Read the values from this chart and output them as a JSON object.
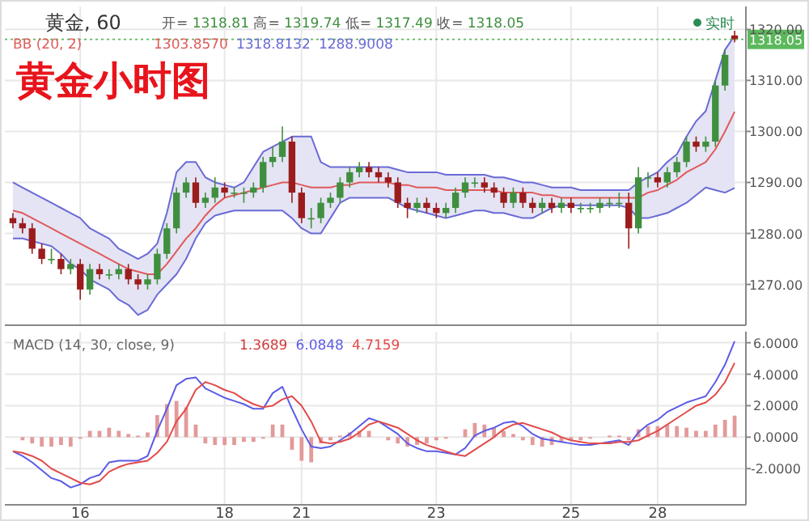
{
  "chart_data": [
    {
      "type": "candlestick",
      "title": "黄金小时图",
      "annotations": [
        "黄金, 60",
        "开= 1318.81 高= 1319.74 低= 1317.49 收= 1318.05",
        "1303.8570",
        "1318.8132",
        "1288.9008",
        "实时"
      ],
      "categories": [
        null,
        null,
        null,
        null,
        null,
        null,
        null,
        "16",
        null,
        null,
        null,
        null,
        null,
        null,
        null,
        null,
        null,
        null,
        null,
        null,
        null,
        null,
        "18",
        null,
        null,
        null,
        null,
        null,
        null,
        null,
        "21",
        null,
        null,
        null,
        null,
        null,
        null,
        null,
        null,
        null,
        null,
        null,
        null,
        null,
        "23",
        null,
        null,
        null,
        null,
        null,
        null,
        null,
        null,
        null,
        null,
        null,
        null,
        null,
        "25",
        null,
        null,
        null,
        null,
        null,
        null,
        null,
        null,
        "28",
        null,
        null,
        null,
        null,
        null,
        null,
        null,
        null
      ],
      "ohlc": [
        [
          1283,
          1284,
          1281,
          1282
        ],
        [
          1282,
          1283,
          1280,
          1281
        ],
        [
          1281,
          1282,
          1276,
          1277
        ],
        [
          1277,
          1278,
          1274,
          1275
        ],
        [
          1275,
          1277,
          1274,
          1275
        ],
        [
          1275,
          1276,
          1272,
          1273
        ],
        [
          1273,
          1275,
          1272,
          1274
        ],
        [
          1274,
          1275,
          1267,
          1269
        ],
        [
          1269,
          1274,
          1268,
          1273
        ],
        [
          1273,
          1274,
          1271,
          1272
        ],
        [
          1272,
          1273,
          1271,
          1272
        ],
        [
          1272,
          1274,
          1271,
          1273
        ],
        [
          1273,
          1274,
          1270,
          1271
        ],
        [
          1271,
          1272,
          1269,
          1270
        ],
        [
          1270,
          1272,
          1269,
          1271
        ],
        [
          1271,
          1277,
          1270,
          1276
        ],
        [
          1276,
          1282,
          1275,
          1281
        ],
        [
          1281,
          1289,
          1280,
          1288
        ],
        [
          1288,
          1291,
          1287,
          1290
        ],
        [
          1290,
          1291,
          1285,
          1286
        ],
        [
          1286,
          1288,
          1285,
          1287
        ],
        [
          1287,
          1291,
          1286,
          1289
        ],
        [
          1289,
          1290,
          1287,
          1288
        ],
        [
          1288,
          1289,
          1287,
          1288
        ],
        [
          1288,
          1289,
          1286,
          1288
        ],
        [
          1288,
          1290,
          1287,
          1289
        ],
        [
          1289,
          1295,
          1288,
          1294
        ],
        [
          1294,
          1297,
          1293,
          1295
        ],
        [
          1295,
          1301,
          1294,
          1298
        ],
        [
          1298,
          1299,
          1286,
          1288
        ],
        [
          1288,
          1289,
          1282,
          1283
        ],
        [
          1283,
          1285,
          1281,
          1283
        ],
        [
          1283,
          1287,
          1282,
          1286
        ],
        [
          1286,
          1288,
          1285,
          1287
        ],
        [
          1287,
          1291,
          1286,
          1290
        ],
        [
          1290,
          1293,
          1289,
          1292
        ],
        [
          1292,
          1294,
          1291,
          1293
        ],
        [
          1293,
          1294,
          1291,
          1292
        ],
        [
          1292,
          1293,
          1290,
          1291
        ],
        [
          1291,
          1292,
          1289,
          1290
        ],
        [
          1290,
          1291,
          1285,
          1286
        ],
        [
          1286,
          1287,
          1283,
          1285
        ],
        [
          1285,
          1287,
          1284,
          1286
        ],
        [
          1286,
          1287,
          1284,
          1285
        ],
        [
          1285,
          1286,
          1283,
          1284
        ],
        [
          1284,
          1286,
          1283,
          1285
        ],
        [
          1285,
          1289,
          1284,
          1288
        ],
        [
          1288,
          1291,
          1287,
          1290
        ],
        [
          1290,
          1291,
          1289,
          1290
        ],
        [
          1290,
          1291,
          1288,
          1289
        ],
        [
          1289,
          1290,
          1287,
          1288
        ],
        [
          1288,
          1289,
          1285,
          1286
        ],
        [
          1286,
          1289,
          1285,
          1288
        ],
        [
          1288,
          1289,
          1285,
          1286
        ],
        [
          1286,
          1287,
          1284,
          1285
        ],
        [
          1285,
          1287,
          1284,
          1286
        ],
        [
          1286,
          1287,
          1284,
          1285
        ],
        [
          1285,
          1287,
          1284,
          1286
        ],
        [
          1286,
          1287,
          1284,
          1285
        ],
        [
          1285,
          1286,
          1284,
          1285
        ],
        [
          1285,
          1286,
          1284,
          1285
        ],
        [
          1285,
          1287,
          1284,
          1286
        ],
        [
          1286,
          1287,
          1285,
          1286
        ],
        [
          1286,
          1288,
          1285,
          1286
        ],
        [
          1286,
          1288,
          1277,
          1281
        ],
        [
          1281,
          1293,
          1280,
          1291
        ],
        [
          1291,
          1292,
          1289,
          1291
        ],
        [
          1291,
          1292,
          1289,
          1290
        ],
        [
          1290,
          1293,
          1289,
          1292
        ],
        [
          1292,
          1295,
          1291,
          1294
        ],
        [
          1294,
          1299,
          1293,
          1298
        ],
        [
          1298,
          1299,
          1296,
          1297
        ],
        [
          1297,
          1299,
          1296,
          1298
        ],
        [
          1298,
          1310,
          1297,
          1309
        ],
        [
          1309,
          1316,
          1308,
          1315
        ],
        [
          1318.81,
          1319.74,
          1317.49,
          1318.05
        ]
      ],
      "series": [
        {
          "name": "BB (20, 2)",
          "type": "line",
          "color": "#e05a5a",
          "values": [
            1284.5,
            1284,
            1283,
            1282,
            1281,
            1280,
            1279,
            1278,
            1277,
            1276,
            1275,
            1274,
            1273,
            1272.5,
            1272,
            1272,
            1274,
            1276.5,
            1279,
            1281,
            1283.5,
            1285.5,
            1287,
            1287.5,
            1288,
            1288.5,
            1289,
            1289.5,
            1290,
            1290,
            1289.5,
            1289,
            1289,
            1289,
            1289.5,
            1289.5,
            1290,
            1290,
            1290,
            1290,
            1289.5,
            1289.5,
            1289,
            1289,
            1289,
            1288.5,
            1288.5,
            1288.5,
            1288.5,
            1288.5,
            1288.5,
            1288,
            1288,
            1288,
            1288,
            1287.5,
            1287.5,
            1287,
            1287,
            1287,
            1287,
            1287,
            1287,
            1287,
            1287,
            1287,
            1288,
            1288.5,
            1289.5,
            1290.5,
            1292,
            1293,
            1294,
            1296.5,
            1300,
            1303.857
          ],
          "upper": [
            1290,
            1289,
            1288,
            1287,
            1286,
            1285,
            1284,
            1283,
            1281,
            1280,
            1279,
            1277,
            1276,
            1275,
            1276,
            1278,
            1284,
            1292,
            1294,
            1294,
            1291,
            1290,
            1289.5,
            1289,
            1290,
            1293,
            1296,
            1297,
            1298,
            1299,
            1299,
            1299,
            1294,
            1293,
            1293,
            1293,
            1293,
            1293,
            1293,
            1293,
            1292.5,
            1292,
            1292,
            1292,
            1292,
            1291.5,
            1291.5,
            1291.5,
            1291.5,
            1291.5,
            1291,
            1291,
            1290.5,
            1290,
            1290,
            1289.5,
            1289,
            1289,
            1289,
            1288.5,
            1288.5,
            1288.5,
            1288.5,
            1288.5,
            1288.5,
            1290,
            1291,
            1292,
            1294,
            1295.5,
            1299,
            1302,
            1304,
            1310,
            1316,
            1318.8132
          ],
          "lower": [
            1279,
            1279,
            1278.5,
            1278,
            1277.5,
            1276,
            1274,
            1273,
            1271,
            1270,
            1269,
            1267,
            1266,
            1264,
            1265,
            1268,
            1270,
            1272,
            1275,
            1279,
            1282,
            1283.5,
            1284,
            1284.5,
            1284.5,
            1284.5,
            1284.5,
            1284.5,
            1284.5,
            1283,
            1281,
            1280,
            1280,
            1283,
            1286,
            1287,
            1287,
            1287,
            1287,
            1287,
            1286,
            1285,
            1284.5,
            1284,
            1283.5,
            1283,
            1283.5,
            1284,
            1284.5,
            1284.5,
            1284,
            1284,
            1283.5,
            1283,
            1283,
            1284,
            1285,
            1285.5,
            1285.5,
            1285.5,
            1285.5,
            1285.5,
            1285.5,
            1285.5,
            1285,
            1283,
            1283,
            1283.5,
            1284,
            1285,
            1286,
            1287.5,
            1289,
            1288.5,
            1288,
            1288.9008
          ]
        },
        {
          "type": "line",
          "color": "#6a6ad6",
          "values": [
            1290,
            1289,
            1288,
            1287,
            1286,
            1285,
            1284,
            1283,
            1281,
            1280,
            1279,
            1277,
            1276,
            1275,
            1276,
            1278,
            1284,
            1292,
            1294,
            1294,
            1291,
            1290,
            1289.5,
            1289,
            1290,
            1293,
            1296,
            1297,
            1298,
            1299,
            1299,
            1299,
            1294,
            1293,
            1293,
            1293,
            1293,
            1293,
            1293,
            1293,
            1292.5,
            1292,
            1292,
            1292,
            1292,
            1291.5,
            1291.5,
            1291.5,
            1291.5,
            1291.5,
            1291,
            1291,
            1290.5,
            1290,
            1290,
            1289.5,
            1289,
            1289,
            1289,
            1288.5,
            1288.5,
            1288.5,
            1288.5,
            1288.5,
            1288.5,
            1290,
            1291,
            1292,
            1294,
            1295.5,
            1299,
            1302,
            1304,
            1310,
            1316,
            1318.8132
          ]
        },
        {
          "type": "line",
          "color": "#6a6ad6",
          "values": [
            1279,
            1279,
            1278.5,
            1278,
            1277.5,
            1276,
            1274,
            1273,
            1271,
            1270,
            1269,
            1267,
            1266,
            1264,
            1265,
            1268,
            1270,
            1272,
            1275,
            1279,
            1282,
            1283.5,
            1284,
            1284.5,
            1284.5,
            1284.5,
            1284.5,
            1284.5,
            1284.5,
            1283,
            1281,
            1280,
            1280,
            1283,
            1286,
            1287,
            1287,
            1287,
            1287,
            1287,
            1286,
            1285,
            1284.5,
            1284,
            1283.5,
            1283,
            1283.5,
            1284,
            1284.5,
            1284.5,
            1284,
            1284,
            1283.5,
            1283,
            1283,
            1284,
            1285,
            1285.5,
            1285.5,
            1285.5,
            1285.5,
            1285.5,
            1285.5,
            1285.5,
            1285,
            1283,
            1283,
            1283.5,
            1284,
            1285,
            1286,
            1287.5,
            1289,
            1288.5,
            1288,
            1288.9008
          ]
        }
      ],
      "ylim": [
        1262,
        1324.5
      ],
      "yticks": [
        {
          "value": 1270,
          "label": "1270.00"
        },
        {
          "value": 1280,
          "label": "1280.00"
        },
        {
          "value": 1290,
          "label": "1290.00"
        },
        {
          "value": 1300,
          "label": "1300.00"
        },
        {
          "value": 1310,
          "label": "1310.00"
        },
        {
          "value": 1320,
          "label": "1320.00"
        }
      ],
      "ref_lines": [
        {
          "axis": "y",
          "value": 1318.05,
          "label": "1318.05",
          "color": "#5cb85c",
          "line_style": "dotted"
        }
      ],
      "grid": true,
      "tick_labels": "y"
    },
    {
      "type": "line",
      "title": "MACD (14, 30, close, 9)",
      "annotations": [
        "1.3689",
        "6.0848",
        "4.7159"
      ],
      "categories": [
        null,
        null,
        null,
        null,
        null,
        null,
        null,
        "16",
        null,
        null,
        null,
        null,
        null,
        null,
        null,
        null,
        null,
        null,
        null,
        null,
        null,
        null,
        "18",
        null,
        null,
        null,
        null,
        null,
        null,
        null,
        "21",
        null,
        null,
        null,
        null,
        null,
        null,
        null,
        null,
        null,
        null,
        null,
        null,
        null,
        "23",
        null,
        null,
        null,
        null,
        null,
        null,
        null,
        null,
        null,
        null,
        null,
        null,
        null,
        "25",
        null,
        null,
        null,
        null,
        null,
        null,
        null,
        null,
        "28",
        null,
        null,
        null,
        null,
        null,
        null,
        null,
        null
      ],
      "series": [
        {
          "type": "bar",
          "color": "#e39a9a",
          "values": [
            0,
            -0.2,
            -0.4,
            -0.6,
            -0.6,
            -0.5,
            -0.6,
            -0.1,
            0.4,
            0.4,
            0.6,
            0.4,
            0.2,
            0.1,
            0.3,
            1.4,
            2.1,
            2.3,
            1.9,
            0.8,
            -0.4,
            -0.5,
            -0.5,
            -0.5,
            -0.3,
            -0.3,
            -0.1,
            0.8,
            0.8,
            -0.8,
            -1.5,
            -1.6,
            -0.4,
            -0.2,
            0.1,
            0.3,
            0.4,
            0.4,
            0,
            -0.2,
            -0.4,
            -0.6,
            -0.5,
            -0.4,
            -0.2,
            -0.1,
            0,
            0.5,
            0.9,
            0.8,
            0.6,
            0.4,
            0.2,
            -0.2,
            -0.5,
            -0.6,
            -0.5,
            -0.3,
            -0.2,
            -0.2,
            -0.1,
            0,
            0.1,
            0.1,
            -0.2,
            0.5,
            0.7,
            0.7,
            0.8,
            0.7,
            0.6,
            0.4,
            0.4,
            0.8,
            1.1,
            1.3689
          ]
        },
        {
          "type": "line",
          "color": "#5b5be6",
          "values": [
            -0.9,
            -1.2,
            -1.6,
            -2.1,
            -2.6,
            -2.8,
            -3.2,
            -3,
            -2.6,
            -2.4,
            -1.6,
            -1.5,
            -1.5,
            -1.5,
            -1.2,
            0.4,
            1.8,
            3.3,
            3.7,
            3.8,
            3.1,
            2.8,
            2.5,
            2.3,
            2.1,
            1.8,
            1.8,
            2.8,
            3.2,
            1.8,
            0.5,
            -0.6,
            -0.7,
            -0.6,
            -0.2,
            0.2,
            0.7,
            1.2,
            1,
            0.6,
            0.2,
            -0.4,
            -0.7,
            -0.9,
            -0.9,
            -1,
            -1.1,
            -0.7,
            0.1,
            0.4,
            0.6,
            0.9,
            1,
            0.7,
            0.2,
            -0.1,
            -0.2,
            -0.3,
            -0.4,
            -0.5,
            -0.5,
            -0.4,
            -0.3,
            -0.2,
            -0.5,
            0.3,
            0.8,
            1.1,
            1.6,
            1.9,
            2.2,
            2.4,
            2.6,
            3.5,
            4.6,
            6.0848
          ]
        },
        {
          "type": "line",
          "color": "#e34a4a",
          "values": [
            -0.9,
            -1,
            -1.2,
            -1.5,
            -2,
            -2.3,
            -2.6,
            -2.9,
            -3,
            -2.8,
            -2.2,
            -1.9,
            -1.7,
            -1.6,
            -1.5,
            -1,
            -0.3,
            1,
            1.8,
            3,
            3.5,
            3.3,
            3,
            2.8,
            2.4,
            2.1,
            1.9,
            2,
            2.4,
            2.6,
            2,
            1,
            -0.3,
            -0.4,
            -0.3,
            -0.1,
            0.3,
            0.8,
            1,
            0.8,
            0.6,
            0.2,
            -0.2,
            -0.5,
            -0.7,
            -0.9,
            -1.1,
            -1.2,
            -0.8,
            -0.4,
            0,
            0.5,
            0.8,
            0.9,
            0.7,
            0.5,
            0.3,
            0,
            -0.2,
            -0.3,
            -0.4,
            -0.4,
            -0.4,
            -0.3,
            -0.3,
            -0.2,
            0.1,
            0.4,
            0.8,
            1.2,
            1.6,
            2,
            2.2,
            2.7,
            3.5,
            4.7159
          ]
        }
      ],
      "ylim": [
        -4.3,
        6.7
      ],
      "yticks": [
        {
          "value": -2,
          "label": "-2.0000"
        },
        {
          "value": 0,
          "label": "0.0000"
        },
        {
          "value": 2,
          "label": "2.0000"
        },
        {
          "value": 4,
          "label": "4.0000"
        },
        {
          "value": 6,
          "label": "6.0000"
        }
      ],
      "grid": true
    }
  ]
}
